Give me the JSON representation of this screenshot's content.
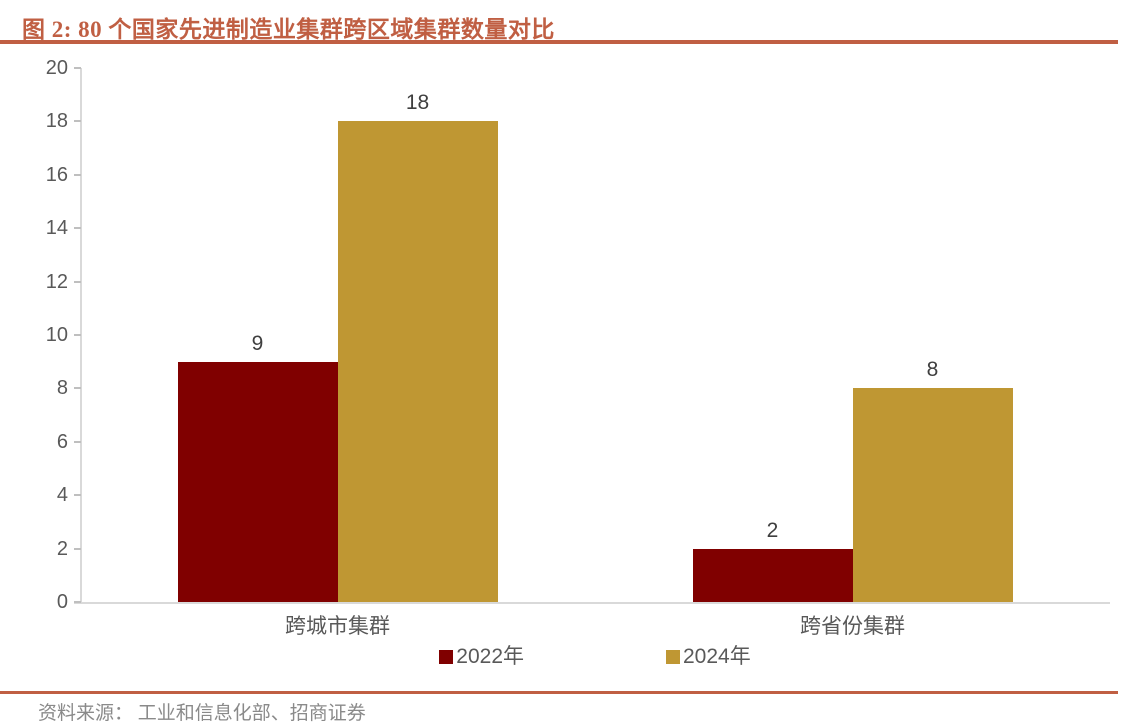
{
  "header": {
    "title": "图 2:  80 个国家先进制造业集群跨区域集群数量对比"
  },
  "footer": {
    "source": "资料来源： 工业和信息化部、招商证券"
  },
  "colors": {
    "accent_terracotta": "#C05F43",
    "series_2022": "#800000",
    "series_2024": "#BF9733",
    "axis_line": "#D9D9D9",
    "tick_label": "#595959",
    "value_label": "#3F3F3F",
    "source_text": "#8A8A8A"
  },
  "chart_data": {
    "type": "bar",
    "title": "80 个国家先进制造业集群跨区域集群数量对比",
    "categories": [
      "跨城市集群",
      "跨省份集群"
    ],
    "series": [
      {
        "name": "2022年",
        "color": "#800000",
        "values": [
          9,
          2
        ]
      },
      {
        "name": "2024年",
        "color": "#BF9733",
        "values": [
          18,
          8
        ]
      }
    ],
    "xlabel": "",
    "ylabel": "",
    "ylim": [
      0,
      20
    ],
    "ytick_step": 2,
    "grid": false,
    "legend_position": "bottom",
    "value_labels": [
      9,
      18,
      2,
      8
    ]
  }
}
